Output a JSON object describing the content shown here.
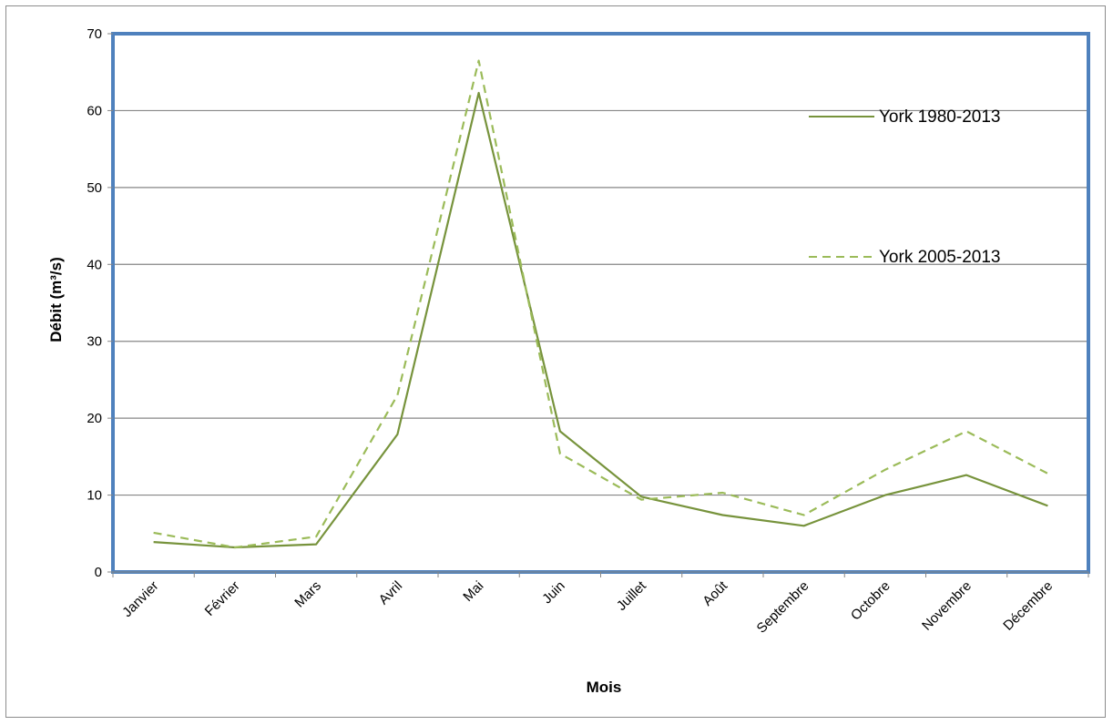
{
  "chart_data": {
    "type": "line",
    "title": "",
    "xlabel": "Mois",
    "ylabel": "Débit (m³/s)",
    "ylim": [
      0,
      70
    ],
    "yticks": [
      0,
      10,
      20,
      30,
      40,
      50,
      60,
      70
    ],
    "ytick_labels": [
      "0",
      "10",
      "20",
      "30",
      "40",
      "50",
      "60",
      "70"
    ],
    "grid": true,
    "legend_position": "top-right, inside",
    "categories": [
      "Janvier",
      "Février",
      "Mars",
      "Avril",
      "Mai",
      "Juin",
      "Juillet",
      "Août",
      "Septembre",
      "Octobre",
      "Novembre",
      "Décembre"
    ],
    "series": [
      {
        "name": "York 1980-2013",
        "style": "solid",
        "color": "#77933c",
        "values": [
          3.9,
          3.2,
          3.6,
          17.9,
          62.3,
          18.3,
          9.8,
          7.4,
          6.0,
          10.0,
          12.6,
          8.6
        ]
      },
      {
        "name": "York 2005-2013",
        "style": "dashed",
        "color": "#9bbb59",
        "values": [
          5.1,
          3.2,
          4.6,
          23.0,
          66.5,
          15.4,
          9.4,
          10.3,
          7.4,
          13.3,
          18.3,
          12.8
        ]
      }
    ],
    "plot_area_border_color": "#4f81bd",
    "gridline_color": "#868686"
  }
}
